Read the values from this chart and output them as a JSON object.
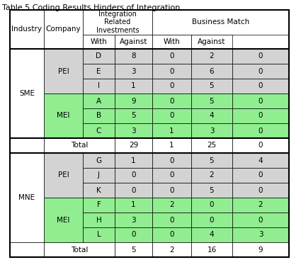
{
  "title": "Table 5 Coding Results Hinders of Integration",
  "rows": [
    {
      "group": "SME",
      "industry": "PEI",
      "company": "D",
      "vals": [
        "8",
        "0",
        "2",
        "0"
      ],
      "bg": "#d3d3d3"
    },
    {
      "group": "SME",
      "industry": "PEI",
      "company": "E",
      "vals": [
        "3",
        "0",
        "6",
        "0"
      ],
      "bg": "#d3d3d3"
    },
    {
      "group": "SME",
      "industry": "PEI",
      "company": "I",
      "vals": [
        "1",
        "0",
        "5",
        "0"
      ],
      "bg": "#d3d3d3"
    },
    {
      "group": "SME",
      "industry": "MEI",
      "company": "A",
      "vals": [
        "9",
        "0",
        "5",
        "0"
      ],
      "bg": "#90ee90"
    },
    {
      "group": "SME",
      "industry": "MEI",
      "company": "B",
      "vals": [
        "5",
        "0",
        "4",
        "0"
      ],
      "bg": "#90ee90"
    },
    {
      "group": "SME",
      "industry": "MEI",
      "company": "C",
      "vals": [
        "3",
        "1",
        "3",
        "0"
      ],
      "bg": "#90ee90"
    }
  ],
  "sme_total": [
    "29",
    "1",
    "25",
    "0"
  ],
  "rows2": [
    {
      "group": "MNE",
      "industry": "PEI",
      "company": "G",
      "vals": [
        "1",
        "0",
        "5",
        "4"
      ],
      "bg": "#d3d3d3"
    },
    {
      "group": "MNE",
      "industry": "PEI",
      "company": "J",
      "vals": [
        "0",
        "0",
        "2",
        "0"
      ],
      "bg": "#d3d3d3"
    },
    {
      "group": "MNE",
      "industry": "PEI",
      "company": "K",
      "vals": [
        "0",
        "0",
        "5",
        "0"
      ],
      "bg": "#d3d3d3"
    },
    {
      "group": "MNE",
      "industry": "MEI",
      "company": "F",
      "vals": [
        "1",
        "2",
        "0",
        "2"
      ],
      "bg": "#90ee90"
    },
    {
      "group": "MNE",
      "industry": "MEI",
      "company": "H",
      "vals": [
        "3",
        "0",
        "0",
        "0"
      ],
      "bg": "#90ee90"
    },
    {
      "group": "MNE",
      "industry": "MEI",
      "company": "L",
      "vals": [
        "0",
        "0",
        "4",
        "3"
      ],
      "bg": "#90ee90"
    }
  ],
  "mne_total": [
    "5",
    "2",
    "16",
    "9"
  ],
  "bg_gray": "#d3d3d3",
  "bg_green": "#90ee90",
  "bg_white": "#ffffff",
  "title_fontsize": 8,
  "cell_fontsize": 7.5
}
